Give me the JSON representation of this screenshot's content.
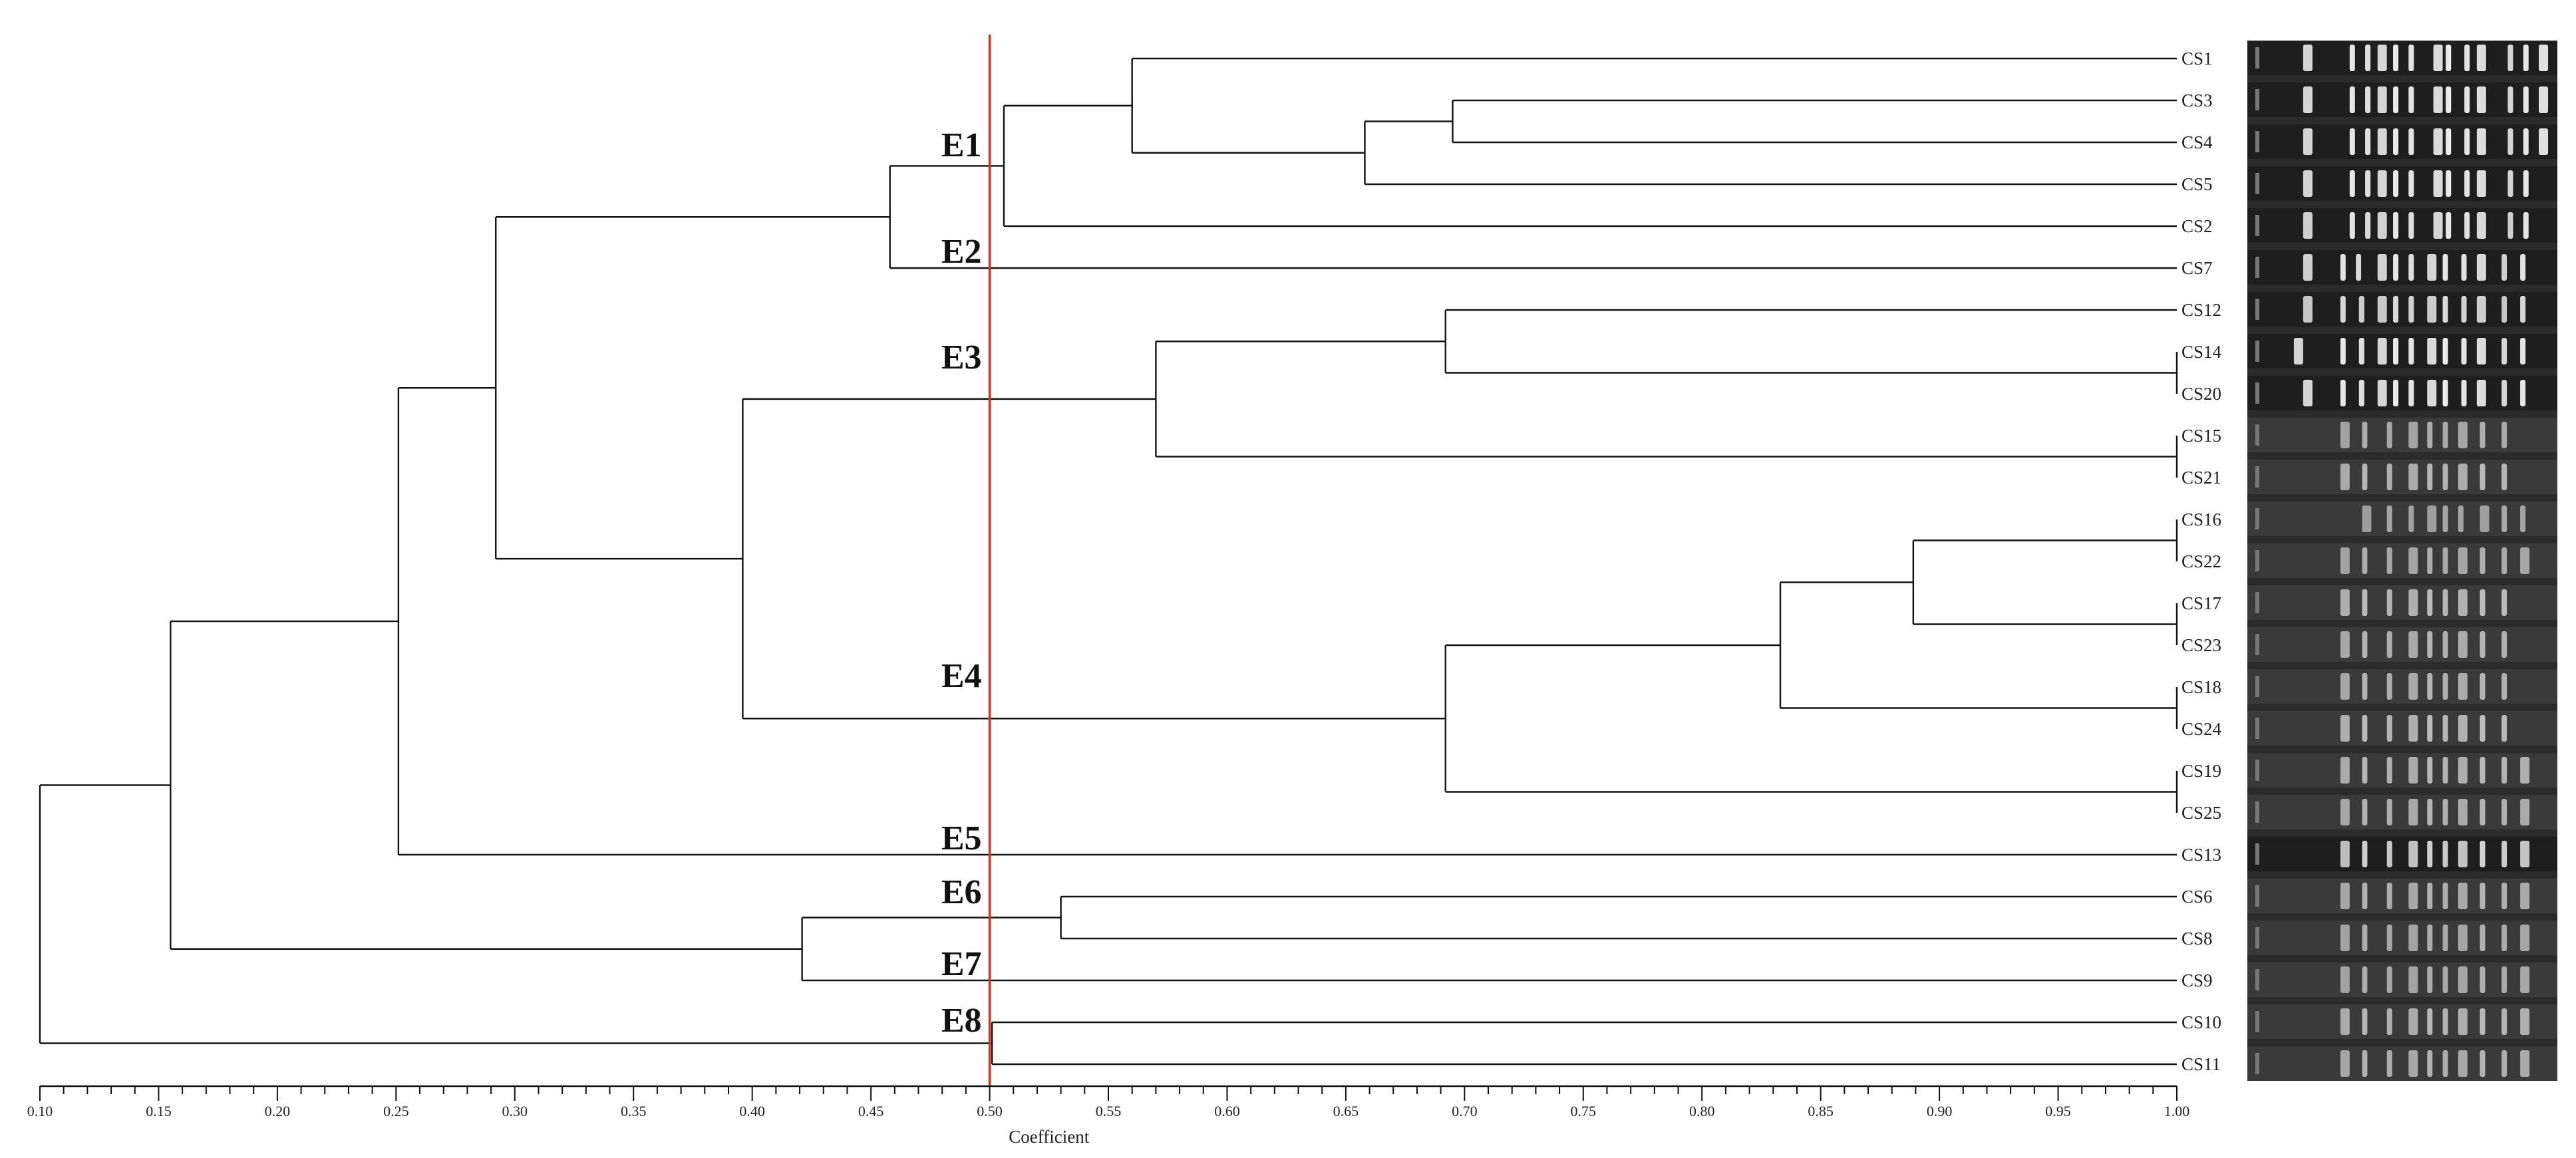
{
  "dendrogram": {
    "axis": {
      "title": "Coefficient",
      "min": 0.1,
      "max": 1.0,
      "labels": [
        "0.10",
        "0.15",
        "0.20",
        "0.25",
        "0.30",
        "0.35",
        "0.40",
        "0.45",
        "0.50",
        "0.55",
        "0.60",
        "0.65",
        "0.70",
        "0.75",
        "0.80",
        "0.85",
        "0.90",
        "0.95",
        "1.00"
      ],
      "major_step": 0.05,
      "minor_step": 0.01
    },
    "cutoff": 0.5,
    "cutoff_color": "#c0392b",
    "leaves": [
      "CS1",
      "CS3",
      "CS4",
      "CS5",
      "CS2",
      "CS7",
      "CS12",
      "CS14",
      "CS20",
      "CS15",
      "CS21",
      "CS16",
      "CS22",
      "CS17",
      "CS23",
      "CS18",
      "CS24",
      "CS19",
      "CS25",
      "CS13",
      "CS6",
      "CS8",
      "CS9",
      "CS10",
      "CS11"
    ],
    "merges": [
      {
        "a": "CS3",
        "b": "CS4",
        "h": 0.695
      },
      {
        "a": "CS3",
        "b": "CS5",
        "h": 0.658
      },
      {
        "a": "CS1",
        "b": "CS3",
        "h": 0.56
      },
      {
        "a": "CS1",
        "b": "CS2",
        "h": 0.506
      },
      {
        "a": "CS14",
        "b": "CS20",
        "h": 1.0
      },
      {
        "a": "CS12",
        "b": "CS14",
        "h": 0.692
      },
      {
        "a": "CS15",
        "b": "CS21",
        "h": 1.0
      },
      {
        "a": "CS12",
        "b": "CS15",
        "h": 0.57
      },
      {
        "a": "CS16",
        "b": "CS22",
        "h": 1.0
      },
      {
        "a": "CS17",
        "b": "CS23",
        "h": 1.0
      },
      {
        "a": "CS16",
        "b": "CS17",
        "h": 0.889
      },
      {
        "a": "CS18",
        "b": "CS24",
        "h": 1.0
      },
      {
        "a": "CS16",
        "b": "CS18",
        "h": 0.833
      },
      {
        "a": "CS19",
        "b": "CS25",
        "h": 1.0
      },
      {
        "a": "CS16",
        "b": "CS19",
        "h": 0.692
      },
      {
        "a": "CS12",
        "b": "CS16",
        "h": 0.396
      },
      {
        "a": "CS1",
        "b": "CS7",
        "h": 0.458
      },
      {
        "a": "CS1",
        "b": "CS12",
        "h": 0.292
      },
      {
        "a": "CS1",
        "b": "CS13",
        "h": 0.251
      },
      {
        "a": "CS6",
        "b": "CS8",
        "h": 0.53
      },
      {
        "a": "CS6",
        "b": "CS9",
        "h": 0.421
      },
      {
        "a": "CS1",
        "b": "CS6",
        "h": 0.155
      },
      {
        "a": "CS10",
        "b": "CS11",
        "h": 0.501
      },
      {
        "a": "CS1",
        "b": "CS10",
        "h": 0.1
      }
    ],
    "groups": [
      {
        "label": "E1",
        "leaf": "CS1"
      },
      {
        "label": "E2",
        "leaf": "CS7"
      },
      {
        "label": "E3",
        "leaf": "CS12"
      },
      {
        "label": "E4",
        "leaf": "CS16"
      },
      {
        "label": "E5",
        "leaf": "CS13"
      },
      {
        "label": "E6",
        "leaf": "CS6"
      },
      {
        "label": "E7",
        "leaf": "CS9"
      },
      {
        "label": "E8",
        "leaf": "CS10"
      }
    ],
    "gel": {
      "background": "#2b2b2b",
      "lanes": [
        {
          "leaf": "CS1",
          "bands": [
            0.18,
            0.33,
            0.38,
            0.42,
            0.47,
            0.52,
            0.6,
            0.64,
            0.7,
            0.74,
            0.84,
            0.89,
            0.94
          ],
          "intensity": 0.95,
          "dark": true
        },
        {
          "leaf": "CS3",
          "bands": [
            0.18,
            0.33,
            0.38,
            0.42,
            0.47,
            0.52,
            0.6,
            0.64,
            0.7,
            0.74,
            0.84,
            0.89,
            0.94
          ],
          "intensity": 0.95,
          "dark": true
        },
        {
          "leaf": "CS4",
          "bands": [
            0.18,
            0.33,
            0.38,
            0.42,
            0.47,
            0.52,
            0.6,
            0.64,
            0.7,
            0.74,
            0.84,
            0.89,
            0.94
          ],
          "intensity": 0.95,
          "dark": true
        },
        {
          "leaf": "CS5",
          "bands": [
            0.18,
            0.33,
            0.38,
            0.42,
            0.47,
            0.52,
            0.6,
            0.64,
            0.7,
            0.74,
            0.84,
            0.89
          ],
          "intensity": 0.95,
          "dark": true
        },
        {
          "leaf": "CS2",
          "bands": [
            0.18,
            0.33,
            0.38,
            0.42,
            0.47,
            0.52,
            0.6,
            0.64,
            0.7,
            0.74,
            0.84,
            0.89
          ],
          "intensity": 0.92,
          "dark": true
        },
        {
          "leaf": "CS7",
          "bands": [
            0.18,
            0.3,
            0.35,
            0.42,
            0.47,
            0.52,
            0.58,
            0.63,
            0.69,
            0.74,
            0.82,
            0.88
          ],
          "intensity": 0.92,
          "dark": true
        },
        {
          "leaf": "CS12",
          "bands": [
            0.18,
            0.3,
            0.36,
            0.42,
            0.47,
            0.52,
            0.58,
            0.63,
            0.69,
            0.74,
            0.82,
            0.88
          ],
          "intensity": 0.85,
          "dark": true
        },
        {
          "leaf": "CS14",
          "bands": [
            0.15,
            0.3,
            0.36,
            0.42,
            0.47,
            0.52,
            0.58,
            0.63,
            0.69,
            0.74,
            0.82,
            0.88
          ],
          "intensity": 0.95,
          "dark": true
        },
        {
          "leaf": "CS20",
          "bands": [
            0.18,
            0.3,
            0.36,
            0.42,
            0.47,
            0.52,
            0.58,
            0.63,
            0.69,
            0.74,
            0.82,
            0.88
          ],
          "intensity": 0.95,
          "dark": true
        },
        {
          "leaf": "CS15",
          "bands": [
            0.3,
            0.37,
            0.45,
            0.52,
            0.58,
            0.63,
            0.68,
            0.75,
            0.82
          ],
          "intensity": 0.55,
          "dark": false
        },
        {
          "leaf": "CS21",
          "bands": [
            0.3,
            0.37,
            0.45,
            0.52,
            0.58,
            0.63,
            0.68,
            0.75,
            0.82
          ],
          "intensity": 0.62,
          "dark": false
        },
        {
          "leaf": "CS16",
          "bands": [
            0.37,
            0.45,
            0.52,
            0.58,
            0.63,
            0.68,
            0.75,
            0.82,
            0.88
          ],
          "intensity": 0.5,
          "dark": false
        },
        {
          "leaf": "CS22",
          "bands": [
            0.3,
            0.37,
            0.45,
            0.52,
            0.58,
            0.63,
            0.68,
            0.75,
            0.82,
            0.88
          ],
          "intensity": 0.55,
          "dark": false
        },
        {
          "leaf": "CS17",
          "bands": [
            0.3,
            0.37,
            0.45,
            0.52,
            0.58,
            0.63,
            0.68,
            0.75,
            0.82
          ],
          "intensity": 0.65,
          "dark": false
        },
        {
          "leaf": "CS23",
          "bands": [
            0.3,
            0.37,
            0.45,
            0.52,
            0.58,
            0.63,
            0.68,
            0.75,
            0.82
          ],
          "intensity": 0.6,
          "dark": false
        },
        {
          "leaf": "CS18",
          "bands": [
            0.3,
            0.37,
            0.45,
            0.52,
            0.58,
            0.63,
            0.68,
            0.75,
            0.82
          ],
          "intensity": 0.6,
          "dark": false
        },
        {
          "leaf": "CS24",
          "bands": [
            0.3,
            0.37,
            0.45,
            0.52,
            0.58,
            0.63,
            0.68,
            0.75,
            0.82
          ],
          "intensity": 0.65,
          "dark": false
        },
        {
          "leaf": "CS19",
          "bands": [
            0.3,
            0.37,
            0.45,
            0.52,
            0.58,
            0.63,
            0.68,
            0.75,
            0.82,
            0.88
          ],
          "intensity": 0.62,
          "dark": false
        },
        {
          "leaf": "CS25",
          "bands": [
            0.3,
            0.37,
            0.45,
            0.52,
            0.58,
            0.63,
            0.68,
            0.75,
            0.82,
            0.88
          ],
          "intensity": 0.6,
          "dark": false
        },
        {
          "leaf": "CS13",
          "bands": [
            0.3,
            0.37,
            0.45,
            0.52,
            0.58,
            0.63,
            0.68,
            0.75,
            0.82,
            0.88
          ],
          "intensity": 0.8,
          "dark": true
        },
        {
          "leaf": "CS6",
          "bands": [
            0.3,
            0.37,
            0.45,
            0.52,
            0.58,
            0.63,
            0.68,
            0.75,
            0.82,
            0.88
          ],
          "intensity": 0.58,
          "dark": false
        },
        {
          "leaf": "CS8",
          "bands": [
            0.3,
            0.37,
            0.45,
            0.52,
            0.58,
            0.63,
            0.68,
            0.75,
            0.82,
            0.88
          ],
          "intensity": 0.55,
          "dark": false
        },
        {
          "leaf": "CS9",
          "bands": [
            0.3,
            0.37,
            0.45,
            0.52,
            0.58,
            0.63,
            0.68,
            0.75,
            0.82,
            0.88
          ],
          "intensity": 0.55,
          "dark": false
        },
        {
          "leaf": "CS10",
          "bands": [
            0.3,
            0.37,
            0.45,
            0.52,
            0.58,
            0.63,
            0.68,
            0.75,
            0.82,
            0.88
          ],
          "intensity": 0.62,
          "dark": false
        },
        {
          "leaf": "CS11",
          "bands": [
            0.3,
            0.37,
            0.45,
            0.52,
            0.58,
            0.63,
            0.68,
            0.75,
            0.82,
            0.88
          ],
          "intensity": 0.58,
          "dark": false
        }
      ]
    }
  }
}
